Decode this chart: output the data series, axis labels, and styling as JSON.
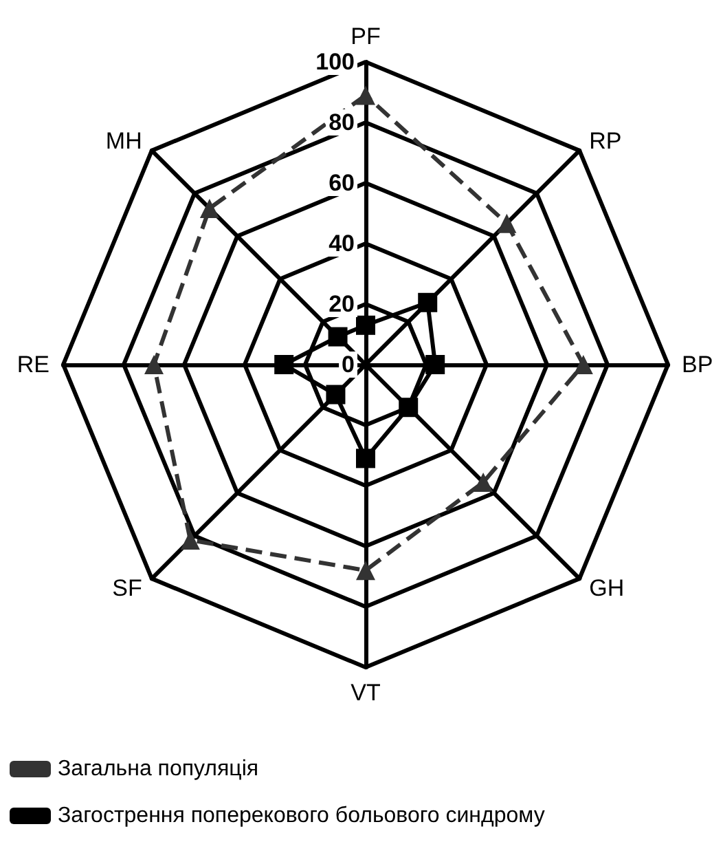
{
  "chart_data": {
    "type": "radar",
    "categories": [
      "PF",
      "RP",
      "BP",
      "GH",
      "VT",
      "SF",
      "RE",
      "MH"
    ],
    "ylim": [
      0,
      100
    ],
    "yticks": [
      0,
      20,
      40,
      60,
      80,
      100
    ],
    "legend": "bottom left",
    "series": [
      {
        "name": "Загальна популяція",
        "color": "#333333",
        "marker": "triangle",
        "line_style": "dashed",
        "values": [
          89,
          66,
          72,
          55,
          68,
          82,
          70,
          73
        ]
      },
      {
        "name": "Загострення поперекового больового синдрому",
        "color": "#000000",
        "marker": "square",
        "line_style": "solid",
        "values": [
          13,
          29,
          23,
          20,
          31,
          14,
          27,
          13
        ]
      }
    ]
  }
}
